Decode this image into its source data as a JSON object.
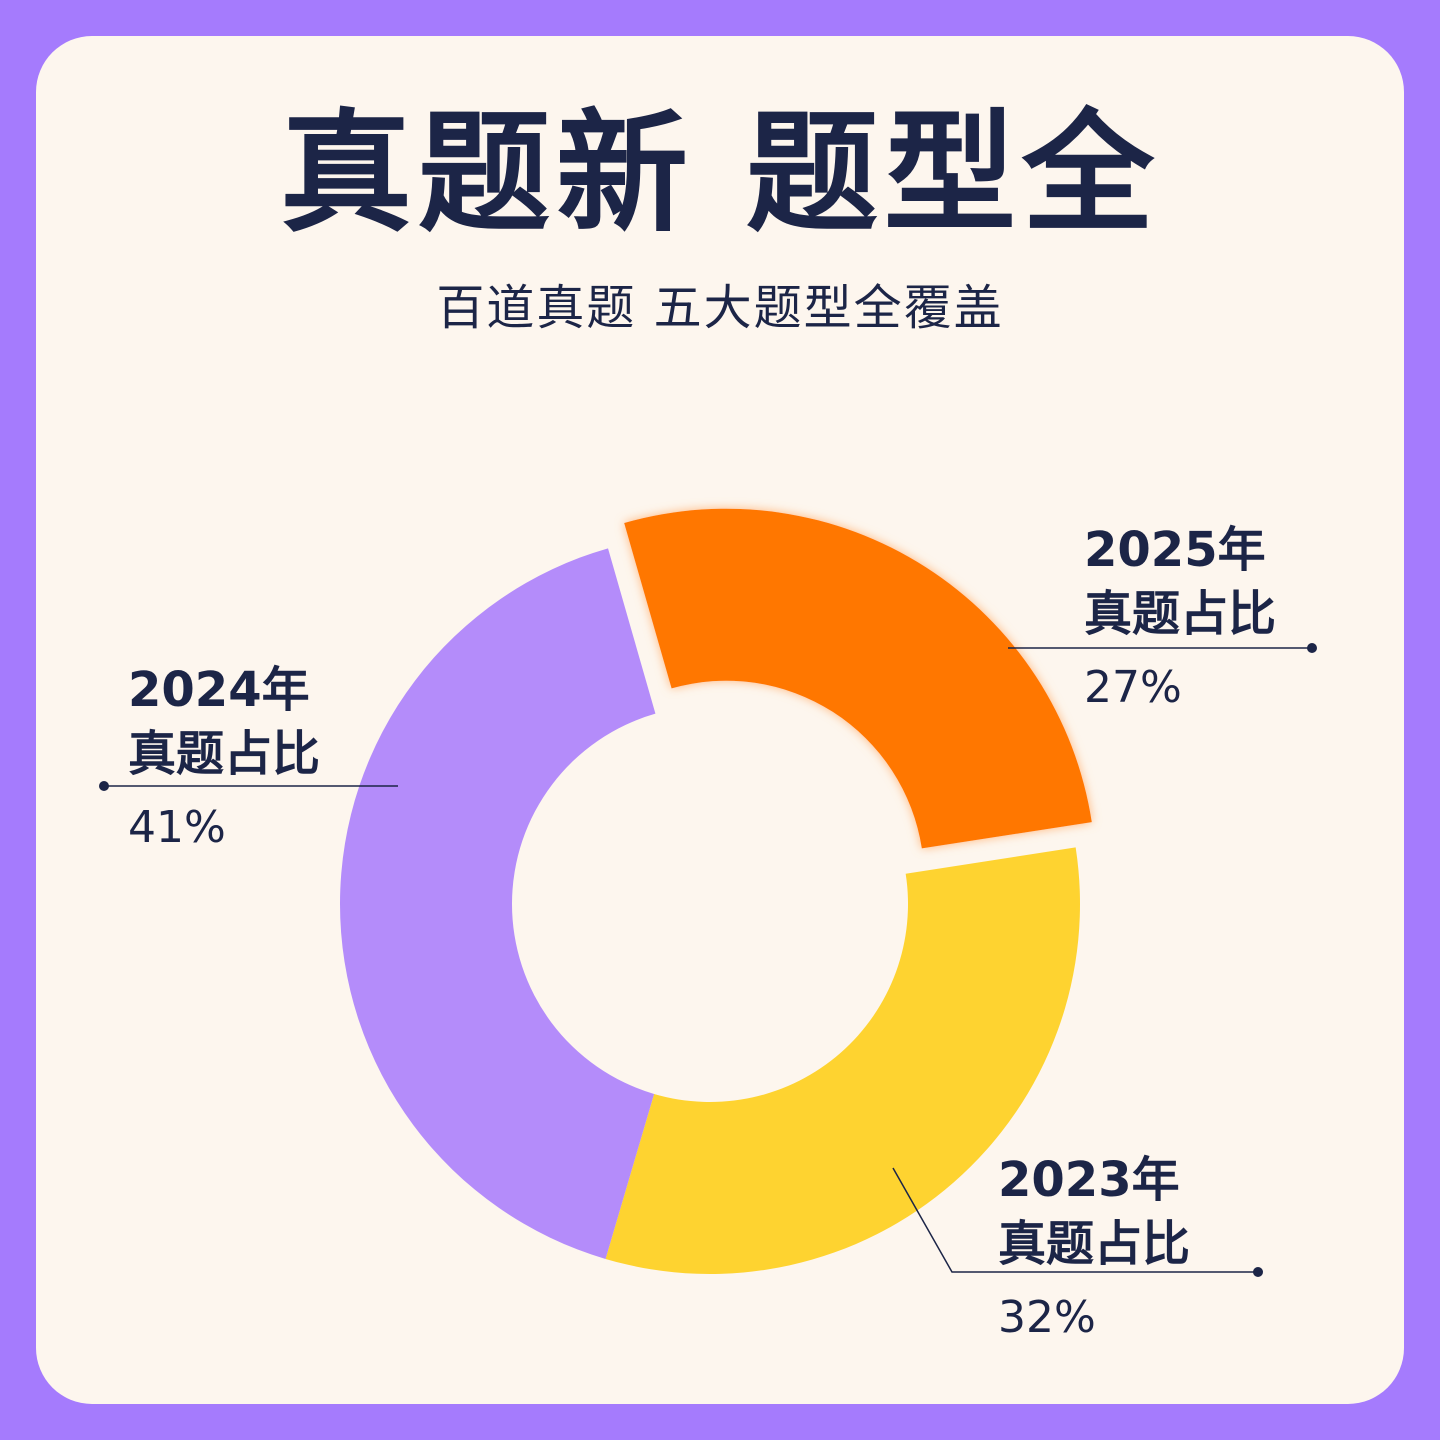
{
  "header": {
    "title": "真题新 题型全",
    "subtitle": "百道真题 五大题型全覆盖"
  },
  "colors": {
    "frame": "#a57bfd",
    "card": "#fdf6ee",
    "text": "#1c2547"
  },
  "chart_data": {
    "type": "pie",
    "variant": "donut",
    "slices": [
      {
        "year": "2025年",
        "label": "真题占比",
        "value": 27,
        "value_label": "27%",
        "color": "#ff7700",
        "exploded": true
      },
      {
        "year": "2023年",
        "label": "真题占比",
        "value": 32,
        "value_label": "32%",
        "color": "#fed330",
        "exploded": false
      },
      {
        "year": "2024年",
        "label": "真题占比",
        "value": 41,
        "value_label": "41%",
        "color": "#b48cfa",
        "exploded": false
      }
    ]
  }
}
